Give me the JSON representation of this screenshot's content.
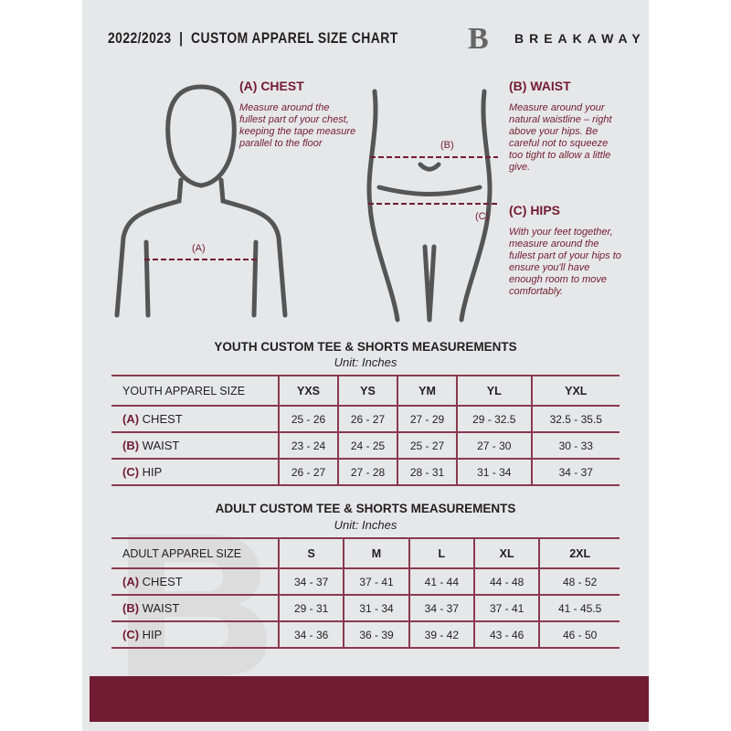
{
  "header": {
    "title": "2022/2023  |  CUSTOM APPAREL SIZE CHART",
    "brand": "BREAKAWAY",
    "logo_letter": "B"
  },
  "colors": {
    "accent": "#721c33",
    "background": "#e6e7e8"
  },
  "chest": {
    "title": "(A) CHEST",
    "desc": "Measure around the fullest part of your chest, keeping the tape measure parallel to the floor",
    "marker": "(A)"
  },
  "waist": {
    "title": "(B) WAIST",
    "desc": "Measure around your natural waistline – right above your hips. Be careful not to squeeze too tight to allow a little give.",
    "marker": "(B)"
  },
  "hips": {
    "title": "(C) HIPS",
    "desc": "With your feet together, measure around the fullest part of your hips to ensure you'll have enough room to move comfortably.",
    "marker": "(C)"
  },
  "youth": {
    "title": "YOUTH CUSTOM TEE & SHORTS MEASUREMENTS",
    "unit": "Unit: Inches",
    "size_label": "YOUTH APPAREL SIZE",
    "sizes": [
      "YXS",
      "YS",
      "YM",
      "YL",
      "YXL"
    ],
    "rows": [
      {
        "letter": "(A)",
        "name": "CHEST",
        "values": [
          "25 - 26",
          "26 - 27",
          "27 - 29",
          "29 - 32.5",
          "32.5 - 35.5"
        ]
      },
      {
        "letter": "(B)",
        "name": "WAIST",
        "values": [
          "23 - 24",
          "24 - 25",
          "25 - 27",
          "27 - 30",
          "30 - 33"
        ]
      },
      {
        "letter": "(C)",
        "name": "HIP",
        "values": [
          "26 - 27",
          "27 - 28",
          "28 - 31",
          "31 - 34",
          "34 - 37"
        ]
      }
    ]
  },
  "adult": {
    "title": "ADULT CUSTOM TEE & SHORTS MEASUREMENTS",
    "unit": "Unit: Inches",
    "size_label": "ADULT APPAREL SIZE",
    "sizes": [
      "S",
      "M",
      "L",
      "XL",
      "2XL"
    ],
    "rows": [
      {
        "letter": "(A)",
        "name": "CHEST",
        "values": [
          "34 - 37",
          "37 - 41",
          "41 - 44",
          "44 - 48",
          "48 - 52"
        ]
      },
      {
        "letter": "(B)",
        "name": "WAIST",
        "values": [
          "29 - 31",
          "31 - 34",
          "34 - 37",
          "37 - 41",
          "41 - 45.5"
        ]
      },
      {
        "letter": "(C)",
        "name": "HIP",
        "values": [
          "34 - 36",
          "36 - 39",
          "39 - 42",
          "43 - 46",
          "46 - 50"
        ]
      }
    ]
  }
}
